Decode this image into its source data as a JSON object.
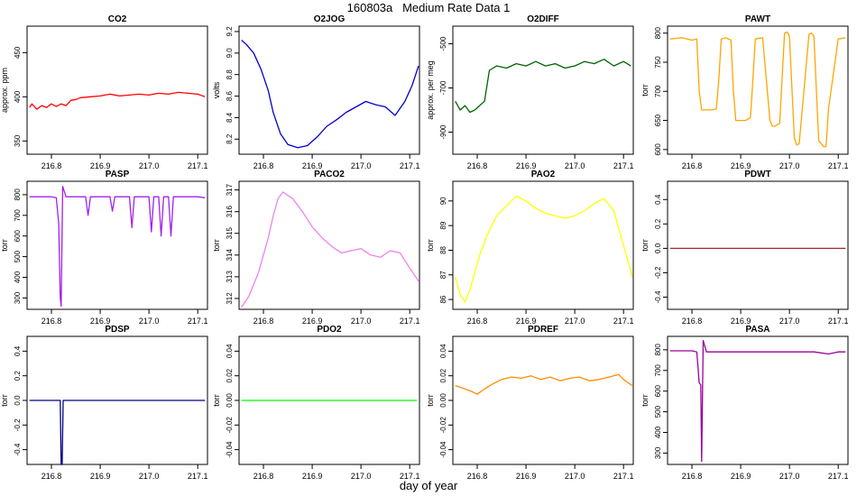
{
  "title": "160803a   Medium Rate Data 1",
  "xlabel": "day of year",
  "chart_data": [
    {
      "type": "line",
      "title": "CO2",
      "ylabel": "approx. ppm",
      "color": "#ff0000",
      "xlim": [
        216.75,
        217.12
      ],
      "ylim": [
        335,
        480
      ],
      "xticks": [
        "216.8",
        "216.9",
        "217.0",
        "217.1"
      ],
      "yticks": [
        "350",
        "400",
        "450"
      ],
      "series": [
        {
          "x": [
            216.755,
            216.76,
            216.77,
            216.78,
            216.79,
            216.8,
            216.81,
            216.82,
            216.83,
            216.84,
            216.85,
            216.86,
            216.88,
            216.9,
            216.92,
            216.94,
            216.96,
            216.98,
            217.0,
            217.02,
            217.04,
            217.06,
            217.08,
            217.1,
            217.115
          ],
          "values": [
            388,
            392,
            386,
            390,
            388,
            392,
            389,
            392,
            390,
            396,
            397,
            399,
            400,
            401,
            403,
            401,
            402,
            403,
            402,
            404,
            403,
            405,
            404,
            403,
            400
          ]
        }
      ]
    },
    {
      "type": "line",
      "title": "O2JOG",
      "ylabel": "volts",
      "color": "#0000cc",
      "xlim": [
        216.75,
        217.12
      ],
      "ylim": [
        8.06,
        9.25
      ],
      "xticks": [
        "216.8",
        "216.9",
        "217.0",
        "217.1"
      ],
      "yticks": [
        "8.2",
        "8.4",
        "8.6",
        "8.8",
        "9.0",
        "9.2"
      ],
      "series": [
        {
          "x": [
            216.755,
            216.765,
            216.78,
            216.795,
            216.81,
            216.82,
            216.835,
            216.85,
            216.87,
            216.89,
            216.91,
            216.93,
            216.95,
            216.97,
            216.99,
            217.01,
            217.03,
            217.05,
            217.07,
            217.09,
            217.105,
            217.118
          ],
          "values": [
            9.12,
            9.08,
            9.0,
            8.85,
            8.65,
            8.45,
            8.25,
            8.15,
            8.12,
            8.14,
            8.22,
            8.32,
            8.38,
            8.45,
            8.5,
            8.55,
            8.52,
            8.5,
            8.42,
            8.55,
            8.7,
            8.88
          ]
        }
      ]
    },
    {
      "type": "line",
      "title": "O2DIFF",
      "ylabel": "approx. per meg",
      "color": "#006400",
      "xlim": [
        216.75,
        217.12
      ],
      "ylim": [
        -1000,
        -420
      ],
      "xticks": [
        "216.8",
        "216.9",
        "217.0",
        "217.1"
      ],
      "yticks": [
        "-900",
        "-700",
        "-500"
      ],
      "series": [
        {
          "x": [
            216.755,
            216.765,
            216.775,
            216.785,
            216.795,
            216.805,
            216.815,
            216.825,
            216.84,
            216.86,
            216.88,
            216.9,
            216.92,
            216.94,
            216.96,
            216.98,
            217.0,
            217.02,
            217.04,
            217.06,
            217.08,
            217.1,
            217.115
          ],
          "values": [
            -760,
            -800,
            -780,
            -810,
            -800,
            -780,
            -760,
            -620,
            -600,
            -610,
            -590,
            -600,
            -580,
            -600,
            -590,
            -610,
            -600,
            -580,
            -590,
            -570,
            -600,
            -580,
            -600
          ]
        }
      ]
    },
    {
      "type": "line",
      "title": "PAWT",
      "ylabel": "torr",
      "color": "#ffa500",
      "xlim": [
        216.75,
        217.12
      ],
      "ylim": [
        592,
        812
      ],
      "xticks": [
        "216.8",
        "216.9",
        "217.0",
        "217.1"
      ],
      "yticks": [
        "600",
        "650",
        "700",
        "750",
        "800"
      ],
      "series": [
        {
          "x": [
            216.755,
            216.78,
            216.8,
            216.81,
            216.815,
            216.82,
            216.84,
            216.85,
            216.855,
            216.86,
            216.87,
            216.88,
            216.885,
            216.89,
            216.91,
            216.92,
            216.925,
            216.93,
            216.945,
            216.96,
            216.965,
            216.97,
            216.98,
            216.99,
            216.995,
            217.0,
            217.01,
            217.015,
            217.02,
            217.04,
            217.045,
            217.05,
            217.06,
            217.07,
            217.075,
            217.08,
            217.1,
            217.115
          ],
          "values": [
            790,
            792,
            788,
            790,
            700,
            668,
            668,
            670,
            720,
            790,
            792,
            788,
            700,
            650,
            650,
            655,
            720,
            790,
            792,
            650,
            640,
            640,
            645,
            800,
            802,
            795,
            620,
            608,
            610,
            798,
            800,
            795,
            615,
            605,
            605,
            670,
            790,
            792
          ]
        }
      ]
    },
    {
      "type": "line",
      "title": "PASP",
      "ylabel": "torr",
      "color": "#a020f0",
      "xlim": [
        216.75,
        217.12
      ],
      "ylim": [
        245,
        865
      ],
      "xticks": [
        "216.8",
        "216.9",
        "217.0",
        "217.1"
      ],
      "yticks": [
        "300",
        "400",
        "500",
        "600",
        "700",
        "800"
      ],
      "series": [
        {
          "x": [
            216.755,
            216.8,
            216.81,
            216.815,
            216.818,
            216.82,
            216.823,
            216.83,
            216.87,
            216.875,
            216.88,
            216.92,
            216.925,
            216.93,
            216.96,
            216.965,
            216.97,
            217.0,
            217.005,
            217.01,
            217.02,
            217.025,
            217.03,
            217.04,
            217.045,
            217.05,
            217.06,
            217.08,
            217.1,
            217.115
          ],
          "values": [
            790,
            790,
            785,
            660,
            300,
            260,
            840,
            790,
            790,
            700,
            790,
            790,
            720,
            790,
            790,
            640,
            790,
            790,
            620,
            790,
            790,
            600,
            790,
            790,
            600,
            790,
            790,
            790,
            790,
            785
          ]
        }
      ]
    },
    {
      "type": "line",
      "title": "PACO2",
      "ylabel": "torr",
      "color": "#ee82ee",
      "xlim": [
        216.75,
        217.12
      ],
      "ylim": [
        311.5,
        317.4
      ],
      "xticks": [
        "216.8",
        "216.9",
        "217.0",
        "217.1"
      ],
      "yticks": [
        "312",
        "313",
        "314",
        "315",
        "316",
        "317"
      ],
      "series": [
        {
          "x": [
            216.755,
            216.77,
            216.79,
            216.81,
            216.82,
            216.83,
            216.84,
            216.86,
            216.88,
            216.9,
            216.92,
            216.94,
            216.96,
            216.98,
            217.0,
            217.02,
            217.04,
            217.06,
            217.08,
            217.1,
            217.118
          ],
          "values": [
            311.6,
            312.1,
            313.2,
            314.8,
            315.8,
            316.6,
            316.9,
            316.6,
            316.0,
            315.3,
            314.8,
            314.4,
            314.1,
            314.2,
            314.3,
            314.0,
            313.9,
            314.2,
            314.1,
            313.4,
            312.8
          ]
        }
      ]
    },
    {
      "type": "line",
      "title": "PAO2",
      "ylabel": "torr",
      "color": "#ffff00",
      "xlim": [
        216.75,
        217.12
      ],
      "ylim": [
        85.6,
        90.8
      ],
      "xticks": [
        "216.8",
        "216.9",
        "217.0",
        "217.1"
      ],
      "yticks": [
        "86",
        "87",
        "88",
        "89",
        "90"
      ],
      "series": [
        {
          "x": [
            216.755,
            216.765,
            216.775,
            216.785,
            216.795,
            216.805,
            216.82,
            216.84,
            216.86,
            216.88,
            216.9,
            216.92,
            216.94,
            216.96,
            216.98,
            217.0,
            217.02,
            217.04,
            217.06,
            217.08,
            217.1,
            217.118
          ],
          "values": [
            86.9,
            86.2,
            85.9,
            86.4,
            87.1,
            87.8,
            88.6,
            89.4,
            89.8,
            90.2,
            90.0,
            89.7,
            89.5,
            89.4,
            89.3,
            89.4,
            89.6,
            89.9,
            90.1,
            89.6,
            88.2,
            86.9
          ]
        }
      ]
    },
    {
      "type": "line",
      "title": "PDWT",
      "ylabel": "torr",
      "color": "#a52a2a",
      "xlim": [
        216.75,
        217.12
      ],
      "ylim": [
        -0.5,
        0.55
      ],
      "xticks": [
        "216.8",
        "216.9",
        "217.0",
        "217.1"
      ],
      "yticks": [
        "-0.4",
        "-0.2",
        "0.0",
        "0.2",
        "0.4"
      ],
      "series": [
        {
          "x": [
            216.755,
            216.8,
            216.85,
            216.9,
            216.95,
            217.0,
            217.05,
            217.1,
            217.115
          ],
          "values": [
            0.0,
            0.0,
            0.0,
            0.0,
            0.0,
            0.0,
            0.0,
            0.0,
            0.0
          ]
        }
      ]
    },
    {
      "type": "line",
      "title": "PDSP",
      "ylabel": "torr",
      "color": "#000080",
      "xlim": [
        216.75,
        217.12
      ],
      "ylim": [
        -0.52,
        0.52
      ],
      "xticks": [
        "216.8",
        "216.9",
        "217.0",
        "217.1"
      ],
      "yticks": [
        "-0.4",
        "-0.2",
        "0.0",
        "0.2",
        "0.4"
      ],
      "series": [
        {
          "x": [
            216.755,
            216.8,
            216.818,
            216.82,
            216.822,
            216.824,
            216.85,
            216.9,
            216.95,
            217.0,
            217.05,
            217.1,
            217.115
          ],
          "values": [
            0.0,
            0.0,
            0.0,
            -0.52,
            -0.52,
            0.0,
            0.0,
            0.0,
            0.0,
            0.0,
            0.0,
            0.0,
            0.0
          ]
        }
      ]
    },
    {
      "type": "line",
      "title": "PDO2",
      "ylabel": "torr",
      "color": "#00ff00",
      "xlim": [
        216.75,
        217.12
      ],
      "ylim": [
        -0.052,
        0.052
      ],
      "xticks": [
        "216.8",
        "216.9",
        "217.0",
        "217.1"
      ],
      "yticks": [
        "-0.04",
        "-0.02",
        "0.00",
        "0.02",
        "0.04"
      ],
      "series": [
        {
          "x": [
            216.755,
            216.8,
            216.85,
            216.9,
            216.95,
            217.0,
            217.05,
            217.1,
            217.115
          ],
          "values": [
            0.0,
            0.0,
            0.0,
            0.0,
            0.0,
            0.0,
            0.0,
            0.0,
            0.0
          ]
        }
      ]
    },
    {
      "type": "line",
      "title": "PDREF",
      "ylabel": "torr",
      "color": "#ff8c00",
      "xlim": [
        216.75,
        217.12
      ],
      "ylim": [
        -0.052,
        0.052
      ],
      "xticks": [
        "216.8",
        "216.9",
        "217.0",
        "217.1"
      ],
      "yticks": [
        "-0.04",
        "-0.02",
        "0.00",
        "0.02",
        "0.04"
      ],
      "series": [
        {
          "x": [
            216.755,
            216.77,
            216.79,
            216.8,
            216.81,
            216.83,
            216.85,
            216.87,
            216.89,
            216.91,
            216.93,
            216.95,
            216.97,
            216.99,
            217.01,
            217.03,
            217.05,
            217.07,
            217.09,
            217.1,
            217.118
          ],
          "values": [
            0.012,
            0.01,
            0.007,
            0.005,
            0.008,
            0.013,
            0.017,
            0.019,
            0.018,
            0.02,
            0.017,
            0.019,
            0.016,
            0.018,
            0.019,
            0.016,
            0.017,
            0.019,
            0.021,
            0.017,
            0.012
          ]
        }
      ]
    },
    {
      "type": "line",
      "title": "PASA",
      "ylabel": "torr",
      "color": "#990099",
      "xlim": [
        216.75,
        217.12
      ],
      "ylim": [
        245,
        865
      ],
      "xticks": [
        "216.8",
        "216.9",
        "217.0",
        "217.1"
      ],
      "yticks": [
        "300",
        "400",
        "500",
        "600",
        "700",
        "800"
      ],
      "series": [
        {
          "x": [
            216.755,
            216.8,
            216.81,
            216.815,
            216.818,
            216.82,
            216.823,
            216.83,
            216.87,
            216.9,
            216.95,
            217.0,
            217.05,
            217.08,
            217.1,
            217.115
          ],
          "values": [
            795,
            795,
            790,
            640,
            630,
            260,
            845,
            790,
            790,
            790,
            790,
            790,
            790,
            780,
            790,
            790
          ]
        }
      ]
    }
  ]
}
